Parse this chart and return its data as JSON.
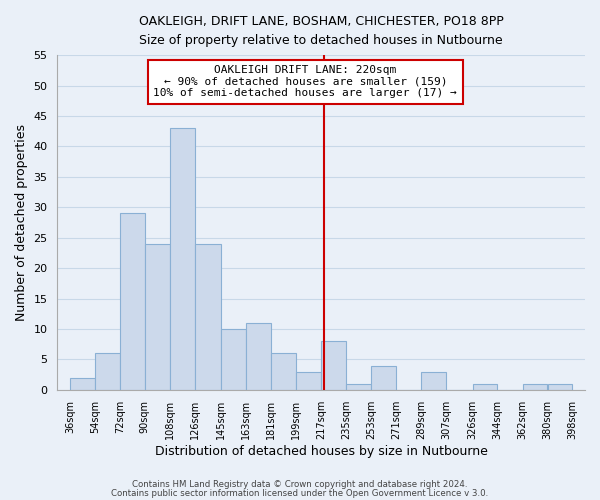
{
  "title": "OAKLEIGH, DRIFT LANE, BOSHAM, CHICHESTER, PO18 8PP",
  "subtitle": "Size of property relative to detached houses in Nutbourne",
  "xlabel": "Distribution of detached houses by size in Nutbourne",
  "ylabel": "Number of detached properties",
  "bin_edges": [
    36,
    54,
    72,
    90,
    108,
    126,
    145,
    163,
    181,
    199,
    217,
    235,
    253,
    271,
    289,
    307,
    326,
    344,
    362,
    380,
    398
  ],
  "bin_labels": [
    "36sqm",
    "54sqm",
    "72sqm",
    "90sqm",
    "108sqm",
    "126sqm",
    "145sqm",
    "163sqm",
    "181sqm",
    "199sqm",
    "217sqm",
    "235sqm",
    "253sqm",
    "271sqm",
    "289sqm",
    "307sqm",
    "326sqm",
    "344sqm",
    "362sqm",
    "380sqm",
    "398sqm"
  ],
  "counts": [
    2,
    6,
    29,
    24,
    43,
    24,
    10,
    11,
    6,
    3,
    8,
    1,
    4,
    0,
    3,
    0,
    1,
    0,
    1,
    1
  ],
  "bar_color": "#ccd9eb",
  "bar_edge_color": "#8ab0d4",
  "vline_x": 219,
  "vline_color": "#cc0000",
  "ylim": [
    0,
    55
  ],
  "yticks": [
    0,
    5,
    10,
    15,
    20,
    25,
    30,
    35,
    40,
    45,
    50,
    55
  ],
  "annotation_title": "OAKLEIGH DRIFT LANE: 220sqm",
  "annotation_line1": "← 90% of detached houses are smaller (159)",
  "annotation_line2": "10% of semi-detached houses are larger (17) →",
  "annotation_box_facecolor": "#ffffff",
  "annotation_box_edgecolor": "#cc0000",
  "footer1": "Contains HM Land Registry data © Crown copyright and database right 2024.",
  "footer2": "Contains public sector information licensed under the Open Government Licence v 3.0.",
  "grid_color": "#c8d8e8",
  "background_color": "#eaf0f8"
}
